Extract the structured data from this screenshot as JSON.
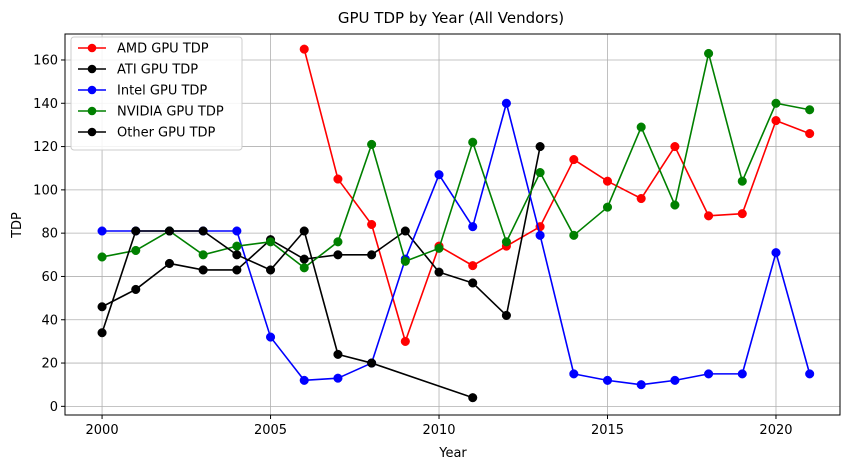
{
  "chart_data": {
    "type": "line",
    "title": "GPU TDP by Year (All Vendors)",
    "xlabel": "Year",
    "ylabel": "TDP",
    "xlim": [
      1998.9,
      2021.9
    ],
    "ylim": [
      -4,
      172
    ],
    "xticks": [
      2000,
      2005,
      2010,
      2015,
      2020
    ],
    "yticks": [
      0,
      20,
      40,
      60,
      80,
      100,
      120,
      140,
      160
    ],
    "grid": true,
    "legend_position": "top-left",
    "series": [
      {
        "name": "AMD GPU TDP",
        "color": "#ff0000",
        "x": [
          2006,
          2007,
          2008,
          2009,
          2010,
          2011,
          2012,
          2013,
          2014,
          2015,
          2016,
          2017,
          2018,
          2019,
          2020,
          2021
        ],
        "y": [
          165,
          105,
          84,
          30,
          74,
          65,
          74,
          83,
          114,
          104,
          96,
          120,
          88,
          89,
          132,
          126
        ]
      },
      {
        "name": "ATI GPU TDP",
        "color": "#000000",
        "x": [
          2000,
          2001,
          2002,
          2003,
          2004,
          2005,
          2006,
          2007,
          2008,
          2009,
          2010,
          2011,
          2012,
          2013
        ],
        "y": [
          46,
          54,
          66,
          63,
          63,
          77,
          68,
          70,
          70,
          81,
          62,
          57,
          42,
          120
        ]
      },
      {
        "name": "Intel GPU TDP",
        "color": "#0000ff",
        "x": [
          2000,
          2001,
          2002,
          2003,
          2004,
          2005,
          2006,
          2007,
          2008,
          2009,
          2010,
          2011,
          2012,
          2013,
          2014,
          2015,
          2016,
          2017,
          2018,
          2019,
          2020,
          2021
        ],
        "y": [
          81,
          81,
          81,
          81,
          81,
          32,
          12,
          13,
          20,
          68,
          107,
          83,
          140,
          79,
          15,
          12,
          10,
          12,
          15,
          15,
          71,
          15
        ]
      },
      {
        "name": "NVIDIA GPU TDP",
        "color": "#008000",
        "x": [
          2000,
          2001,
          2002,
          2003,
          2004,
          2005,
          2006,
          2007,
          2008,
          2009,
          2010,
          2011,
          2012,
          2013,
          2014,
          2015,
          2016,
          2017,
          2018,
          2019,
          2020,
          2021
        ],
        "y": [
          69,
          72,
          81,
          70,
          74,
          76,
          64,
          76,
          121,
          67,
          73,
          122,
          76,
          108,
          79,
          92,
          129,
          93,
          163,
          104,
          140,
          137
        ]
      },
      {
        "name": "Other GPU TDP",
        "color": "#000000",
        "x": [
          2000,
          2001,
          2002,
          2003,
          2004,
          2005,
          2006,
          2007,
          2008,
          2011
        ],
        "y": [
          34,
          81,
          81,
          81,
          70,
          63,
          81,
          24,
          20,
          4
        ]
      }
    ]
  }
}
